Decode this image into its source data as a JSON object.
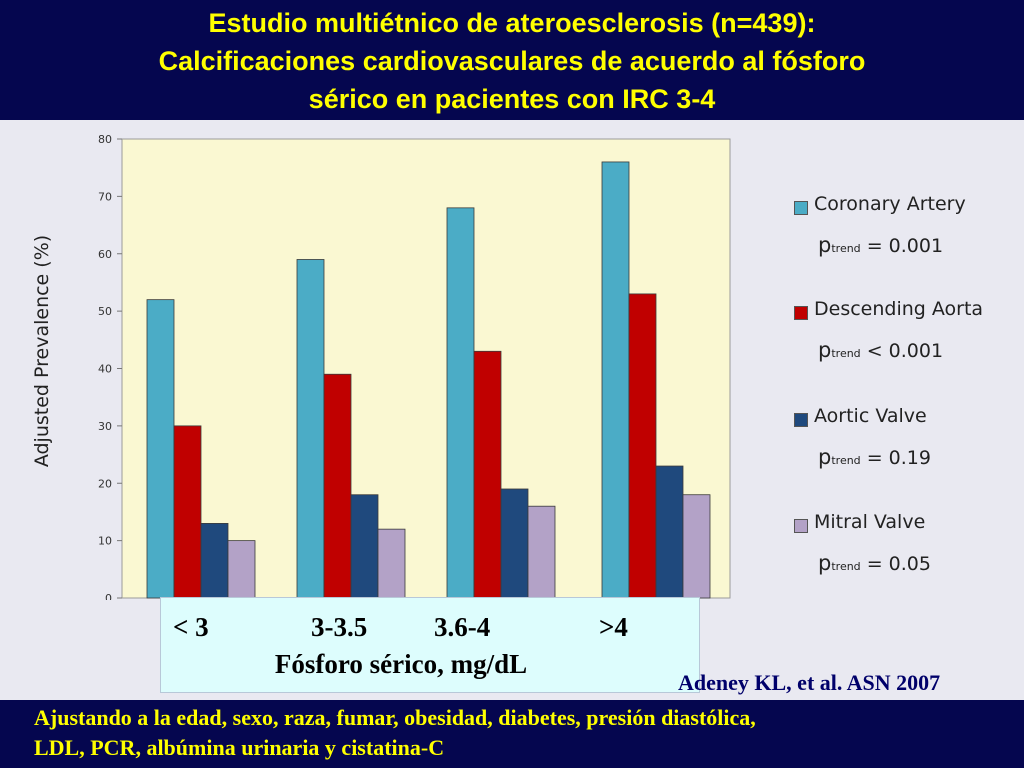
{
  "title": {
    "line1": "Estudio multiétnico de ateroesclerosis (n=439):",
    "line2": "Calcificaciones cardiovasculares de acuerdo al fósforo",
    "line3": "sérico en pacientes con IRC 3-4"
  },
  "chart_data": {
    "type": "bar",
    "categories": [
      "< 3",
      "3-3.5",
      "3.6-4",
      ">4"
    ],
    "series": [
      {
        "name": "Coronary Artery",
        "p_prefix": "p",
        "p_sub": "trend",
        "p_text": " = 0.001",
        "color": "#4bacc6",
        "values": [
          52,
          59,
          68,
          76
        ]
      },
      {
        "name": "Descending Aorta",
        "p_prefix": "p",
        "p_sub": "trend",
        "p_text": " < 0.001",
        "color": "#c00000",
        "values": [
          30,
          39,
          43,
          53
        ]
      },
      {
        "name": "Aortic Valve",
        "p_prefix": "p",
        "p_sub": "trend",
        "p_text": " = 0.19",
        "color": "#1f497d",
        "values": [
          13,
          18,
          19,
          23
        ]
      },
      {
        "name": "Mitral Valve",
        "p_prefix": "p",
        "p_sub": "trend",
        "p_text": " =  0.05",
        "color": "#b3a2c7",
        "values": [
          10,
          12,
          16,
          18
        ]
      }
    ],
    "ylabel": "Adjusted Prevalence  (%)",
    "xlabel": "Fósforo sérico, mg/dL",
    "ylim": [
      0,
      80
    ],
    "yticks": [
      "0",
      "10",
      "20",
      "30",
      "40",
      "50",
      "60",
      "70",
      "80"
    ],
    "grid": false,
    "legend": "right",
    "plot_bg": "#faf8d2"
  },
  "citation": "Adeney KL, et al. ASN 2007",
  "footer": {
    "line1": "Ajustando a la edad, sexo, raza, fumar, obesidad, diabetes, presión diastólica,",
    "line2": "LDL, PCR, albúmina urinaria y cistatina-C"
  },
  "colors": {
    "band": "#05064f",
    "title_text": "#ffff00",
    "citation_text": "#00006a"
  }
}
